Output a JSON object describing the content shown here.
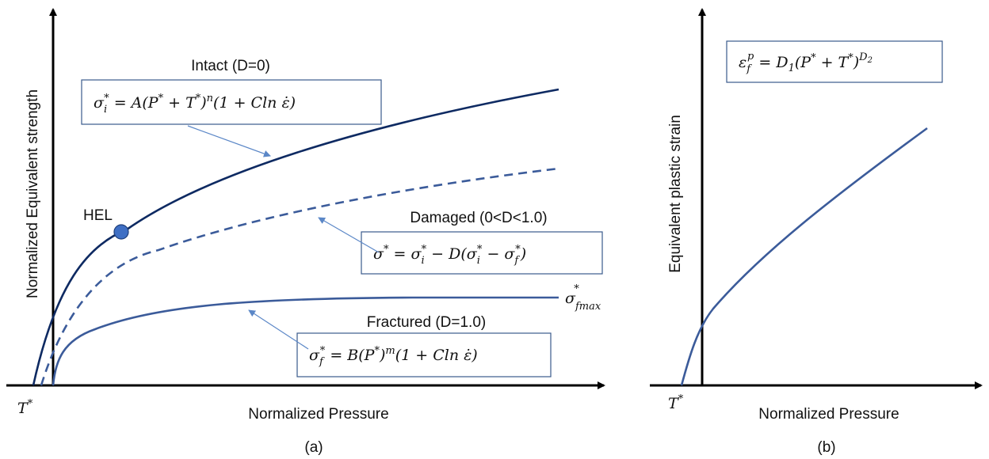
{
  "panel_a": {
    "y_axis_label": "Normalized Equivalent strength",
    "x_axis_label": "Normalized Pressure",
    "tick_label": "T*",
    "caption": "(a)",
    "point_label": "HEL",
    "curves": {
      "intact": {
        "title": "Intact (D=0)",
        "equation": "σi* = A(P* + T*)^n(1 + Cln ε̇)"
      },
      "damaged": {
        "title": "Damaged (0<D<1.0)",
        "equation": "σ* = σi* − D(σi* − σf*)"
      },
      "fractured": {
        "title": "Fractured (D=1.0)",
        "equation": "σf* = B(P*)^m(1 + Cln ε̇)",
        "asymptote_label": "σ*fmax"
      }
    }
  },
  "panel_b": {
    "y_axis_label": "Equivalent plastic strain",
    "x_axis_label": "Normalized Pressure",
    "tick_label": "T*",
    "caption": "(b)",
    "equation": "εf^p = D1(P* + T*)^D2"
  },
  "colors": {
    "intact_curve": "#0e2a62",
    "other_curves": "#3b5b9a",
    "leader_arrows": "#5b87c7",
    "hel_point": "#3f6fc4"
  }
}
